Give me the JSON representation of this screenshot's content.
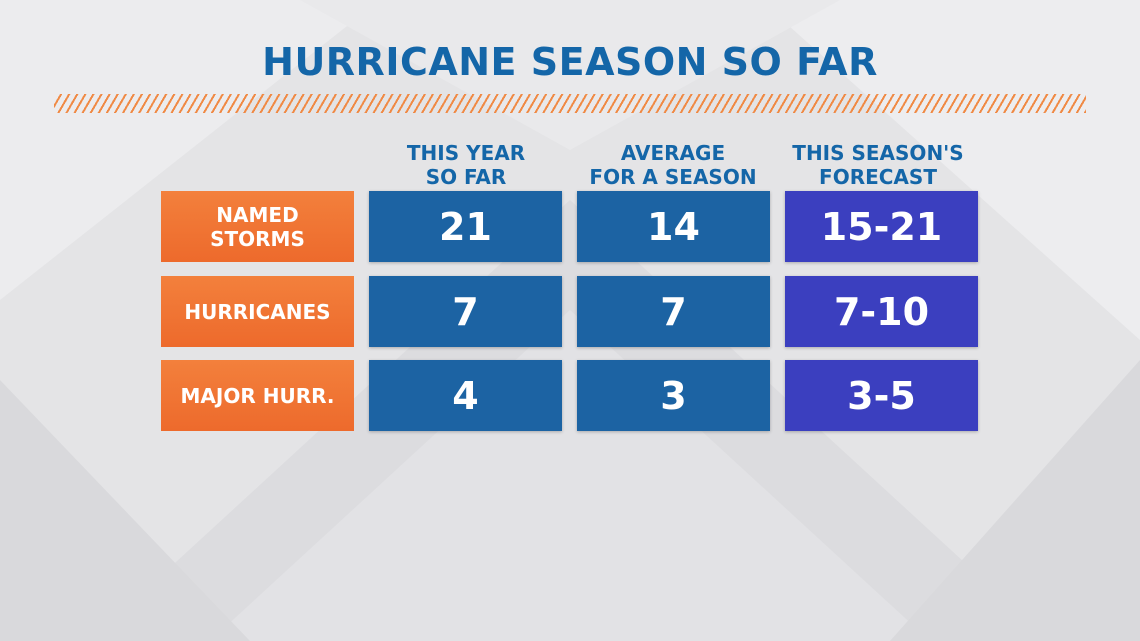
{
  "title": "HURRICANE SEASON SO FAR",
  "chart_data": {
    "type": "table",
    "title": "HURRICANE SEASON SO FAR",
    "columns": [
      {
        "line1": "THIS YEAR",
        "line2": "SO FAR"
      },
      {
        "line1": "AVERAGE",
        "line2": "FOR A SEASON"
      },
      {
        "line1": "THIS SEASON'S",
        "line2": "FORECAST"
      }
    ],
    "rows": [
      {
        "label_line1": "NAMED",
        "label_line2": "STORMS",
        "values": [
          "21",
          "14",
          "15-21"
        ]
      },
      {
        "label_line1": "HURRICANES",
        "label_line2": "",
        "values": [
          "7",
          "7",
          "7-10"
        ]
      },
      {
        "label_line1": "MAJOR HURR.",
        "label_line2": "",
        "values": [
          "4",
          "3",
          "3-5"
        ]
      }
    ]
  },
  "colors": {
    "title": "#1466a8",
    "row_label_bg": "#ed6a2c",
    "value_bg": "#1c63a3",
    "forecast_bg": "#3b3fbf",
    "background": "#e6e6e8"
  }
}
